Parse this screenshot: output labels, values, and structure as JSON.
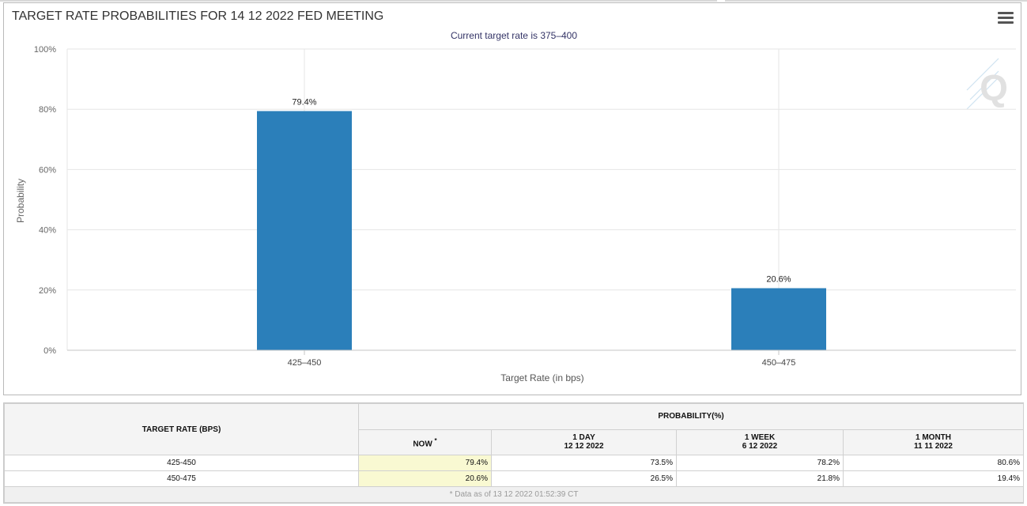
{
  "chart_data": {
    "type": "bar",
    "title": "TARGET RATE PROBABILITIES FOR 14 12 2022 FED MEETING",
    "subtitle": "Current target rate is 375–400",
    "xlabel": "Target Rate (in bps)",
    "ylabel": "Probability",
    "categories": [
      "425–450",
      "450–475"
    ],
    "values": [
      79.4,
      20.6
    ],
    "value_labels": [
      "79.4%",
      "20.6%"
    ],
    "ylim": [
      0,
      100
    ],
    "yticks": [
      0,
      20,
      40,
      60,
      80,
      100
    ],
    "ytick_labels": [
      "0%",
      "20%",
      "40%",
      "60%",
      "80%",
      "100%"
    ],
    "bar_color": "#2b7fba",
    "grid": true,
    "watermark": "Q"
  },
  "table": {
    "rate_header": "TARGET RATE (BPS)",
    "prob_header": "PROBABILITY(%)",
    "now_label": "NOW",
    "now_mark": "*",
    "columns": [
      {
        "label": "1 DAY",
        "date": "12 12 2022"
      },
      {
        "label": "1 WEEK",
        "date": "6 12 2022"
      },
      {
        "label": "1 MONTH",
        "date": "11 11 2022"
      }
    ],
    "rows": [
      {
        "rate": "425-450",
        "now": "79.4%",
        "d1": "73.5%",
        "w1": "78.2%",
        "m1": "80.6%"
      },
      {
        "rate": "450-475",
        "now": "20.6%",
        "d1": "26.5%",
        "w1": "21.8%",
        "m1": "19.4%"
      }
    ],
    "footnote": "* Data as of 13 12 2022 01:52:39 CT"
  },
  "colors": {
    "bar": "#2b7fba",
    "now_highlight": "#f9f9d2",
    "title": "#333333",
    "subtitle": "#333366"
  }
}
